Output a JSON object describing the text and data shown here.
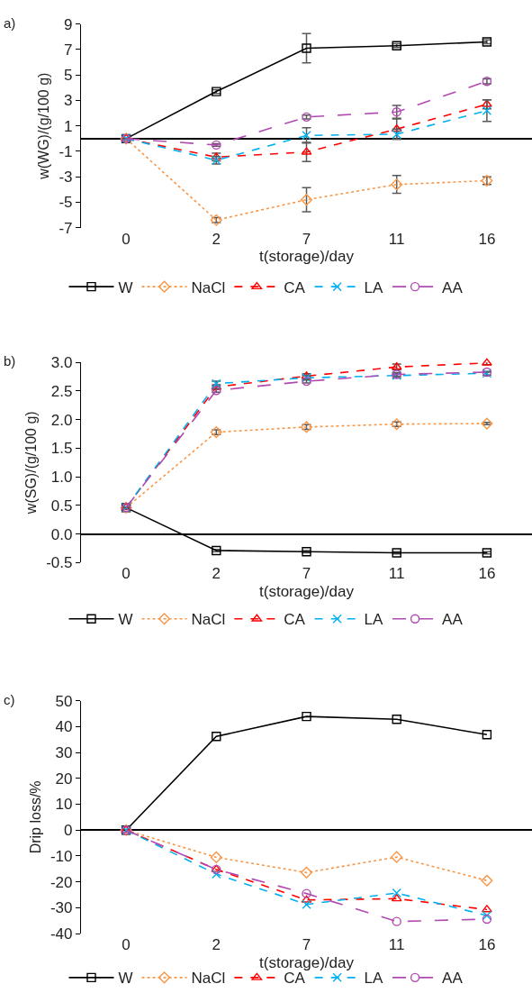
{
  "chart_data": [
    {
      "type": "line",
      "title": "a)",
      "xlabel": "t(storage)/day",
      "ylabel": "w(WG)/(g/100 g)",
      "categories": [
        "0",
        "2",
        "7",
        "11",
        "16"
      ],
      "ylim": [
        -7,
        9
      ],
      "yticks": [
        -7,
        -5,
        -3,
        -1,
        1,
        3,
        5,
        7,
        9
      ],
      "legend": "bottom",
      "series": [
        {
          "name": "W",
          "color": "#000000",
          "marker": "square",
          "line_style": "solid",
          "values": [
            0,
            3.7,
            7.1,
            7.3,
            7.6
          ],
          "errors": [
            null,
            0.15,
            1.15,
            0.15,
            0.15
          ]
        },
        {
          "name": "NaCl",
          "color": "#f79646",
          "marker": "diamond",
          "line_style": "dotted",
          "values": [
            0,
            -6.4,
            -4.8,
            -3.6,
            -3.3
          ],
          "errors": [
            null,
            0.2,
            0.95,
            0.7,
            0.3
          ]
        },
        {
          "name": "CA",
          "color": "#ff0000",
          "marker": "triangle",
          "line_style": "dashed",
          "values": [
            0,
            -1.45,
            -1.05,
            0.75,
            2.7
          ],
          "errors": [
            null,
            0.3,
            0.75,
            0.8,
            0.35
          ]
        },
        {
          "name": "LA",
          "color": "#00b0f0",
          "marker": "cross",
          "line_style": "dashed",
          "values": [
            0,
            -1.7,
            0.25,
            0.35,
            2.2
          ],
          "errors": [
            null,
            0.3,
            0.6,
            0.4,
            0.85
          ]
        },
        {
          "name": "AA",
          "color": "#b04ab0",
          "marker": "circle",
          "line_style": "longdash",
          "values": [
            0,
            -0.5,
            1.7,
            2.1,
            4.5
          ],
          "errors": [
            null,
            0.1,
            0.15,
            0.5,
            0.2
          ]
        }
      ]
    },
    {
      "type": "line",
      "title": "b)",
      "xlabel": "t(storage)/day",
      "ylabel": "w(SG)/(g/100 g)",
      "categories": [
        "0",
        "2",
        "7",
        "11",
        "16"
      ],
      "ylim": [
        -0.5,
        3.0
      ],
      "yticks": [
        {
          "value": -0.5,
          "label": "-0.5"
        },
        {
          "value": 0,
          "label": "0.0"
        },
        {
          "value": 0.5,
          "label": "0.5"
        },
        {
          "value": 1,
          "label": "1.0"
        },
        {
          "value": 1.5,
          "label": "1.5"
        },
        {
          "value": 2,
          "label": "2.0"
        },
        {
          "value": 2.5,
          "label": "2.5"
        },
        {
          "value": 3,
          "label": "3.0"
        }
      ],
      "legend": "bottom",
      "series": [
        {
          "name": "W",
          "color": "#000000",
          "marker": "square",
          "line_style": "solid",
          "values": [
            0.46,
            -0.29,
            -0.31,
            -0.33,
            -0.33
          ],
          "errors": [
            null,
            0.02,
            0.02,
            0.02,
            0.02
          ]
        },
        {
          "name": "NaCl",
          "color": "#f79646",
          "marker": "diamond",
          "line_style": "dotted",
          "values": [
            0.46,
            1.78,
            1.87,
            1.92,
            1.93
          ],
          "errors": [
            null,
            0.04,
            0.04,
            0.04,
            0.02
          ]
        },
        {
          "name": "CA",
          "color": "#ff0000",
          "marker": "triangle",
          "line_style": "dashed",
          "values": [
            0.46,
            2.57,
            2.76,
            2.92,
            2.99
          ],
          "errors": [
            null,
            0.04,
            0.04,
            0.05,
            0.03
          ]
        },
        {
          "name": "LA",
          "color": "#00b0f0",
          "marker": "cross",
          "line_style": "dashed",
          "values": [
            0.46,
            2.63,
            2.73,
            2.77,
            2.81
          ],
          "errors": [
            null,
            0.04,
            0.04,
            0.04,
            0.03
          ]
        },
        {
          "name": "AA",
          "color": "#b04ab0",
          "marker": "circle",
          "line_style": "longdash",
          "values": [
            0.46,
            2.51,
            2.67,
            2.79,
            2.83
          ],
          "errors": [
            null,
            0.03,
            0.03,
            0.03,
            null
          ]
        }
      ]
    },
    {
      "type": "line",
      "title": "c)",
      "xlabel": "t(storage)/day",
      "ylabel": "Drip loss/%",
      "categories": [
        "0",
        "2",
        "7",
        "11",
        "16"
      ],
      "ylim": [
        -40,
        50
      ],
      "yticks": [
        -40,
        -30,
        -20,
        -10,
        0,
        10,
        20,
        30,
        40,
        50
      ],
      "legend": "bottom",
      "series": [
        {
          "name": "W",
          "color": "#000000",
          "marker": "square",
          "line_style": "solid",
          "values": [
            0,
            36.2,
            43.9,
            42.8,
            36.9
          ]
        },
        {
          "name": "NaCl",
          "color": "#f79646",
          "marker": "diamond",
          "line_style": "dotted",
          "values": [
            0,
            -10.5,
            -16.4,
            -10.4,
            -19.5
          ]
        },
        {
          "name": "CA",
          "color": "#ff0000",
          "marker": "triangle",
          "line_style": "dashed",
          "values": [
            0,
            -15.2,
            -27,
            -26.5,
            -30.7
          ]
        },
        {
          "name": "LA",
          "color": "#00b0f0",
          "marker": "cross",
          "line_style": "dashed",
          "values": [
            0,
            -17,
            -28.7,
            -24.3,
            -33
          ]
        },
        {
          "name": "AA",
          "color": "#b04ab0",
          "marker": "circle",
          "line_style": "longdash",
          "values": [
            0,
            -15.2,
            -24.5,
            -35.3,
            -34.4
          ]
        }
      ]
    }
  ]
}
